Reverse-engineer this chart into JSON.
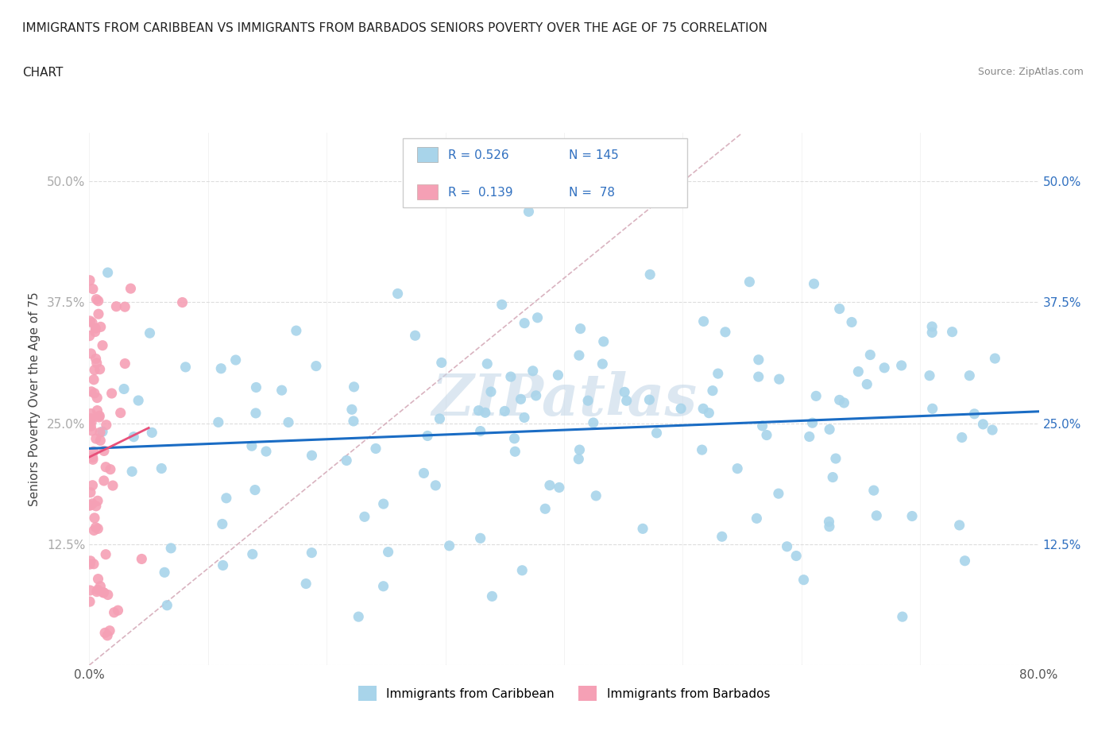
{
  "title_line1": "IMMIGRANTS FROM CARIBBEAN VS IMMIGRANTS FROM BARBADOS SENIORS POVERTY OVER THE AGE OF 75 CORRELATION",
  "title_line2": "CHART",
  "source_text": "Source: ZipAtlas.com",
  "ylabel": "Seniors Poverty Over the Age of 75",
  "x_min": 0.0,
  "x_max": 0.8,
  "y_min": 0.0,
  "y_max": 0.55,
  "x_ticks": [
    0.0,
    0.1,
    0.2,
    0.3,
    0.4,
    0.5,
    0.6,
    0.7,
    0.8
  ],
  "x_tick_labels": [
    "0.0%",
    "",
    "",
    "",
    "",
    "",
    "",
    "",
    "80.0%"
  ],
  "y_ticks": [
    0.0,
    0.125,
    0.25,
    0.375,
    0.5
  ],
  "y_tick_labels": [
    "",
    "12.5%",
    "25.0%",
    "37.5%",
    "50.0%"
  ],
  "R_caribbean": 0.526,
  "N_caribbean": 145,
  "R_barbados": 0.139,
  "N_barbados": 78,
  "color_caribbean": "#a8d4ea",
  "color_barbados": "#f5a0b5",
  "trendline_color_caribbean": "#1a6cc4",
  "trendline_color_barbados": "#e8507a",
  "diagonal_color": "#d0a0b0",
  "watermark_color": "#c5d8e8",
  "right_tick_color": "#3070c0"
}
